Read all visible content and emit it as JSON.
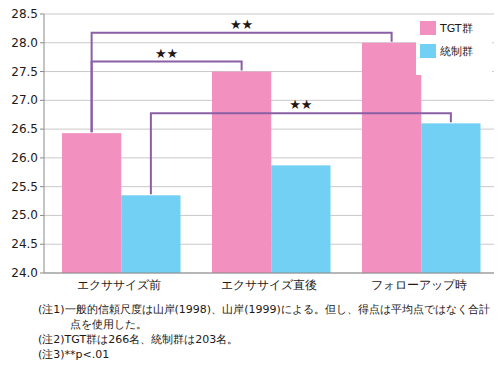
{
  "chart_data": {
    "type": "bar",
    "categories": [
      "エクササイズ前",
      "エクササイズ直後",
      "フォローアップ時"
    ],
    "series": [
      {
        "name": "TGT群",
        "color": "#f290c0",
        "values": [
          26.43,
          27.5,
          28.0
        ]
      },
      {
        "name": "統制群",
        "color": "#72d0f4",
        "values": [
          25.35,
          25.87,
          26.6
        ]
      }
    ],
    "ylim": [
      24,
      28.5
    ],
    "yticks": [
      {
        "value": 24,
        "label": "24.0"
      },
      24.5,
      {
        "value": 25,
        "label": "25.0"
      },
      25.5,
      {
        "value": 26,
        "label": "26.0"
      },
      26.5,
      {
        "value": 27,
        "label": "27.0"
      },
      27.5,
      {
        "value": 28,
        "label": "28.0"
      },
      28.5
    ],
    "grid": true,
    "legend": "upper right",
    "annotations": [
      {
        "text": "★★",
        "from": {
          "series": 0,
          "category": 0
        },
        "to": {
          "series": 0,
          "category": 2
        }
      },
      {
        "text": "★★",
        "from": {
          "series": 0,
          "category": 0
        },
        "to": {
          "series": 0,
          "category": 1
        }
      },
      {
        "text": "★★",
        "from": {
          "series": 1,
          "category": 0
        },
        "to": {
          "series": 1,
          "category": 2
        }
      }
    ],
    "notes": [
      "(注1)一般的信頼尺度は山岸(1998)、山岸(1999)による。但し、得点は平均点ではなく合計点を使用した。",
      "(注2)TGT群は266名、統制群は203名。",
      "(注3)**p<.01"
    ]
  }
}
